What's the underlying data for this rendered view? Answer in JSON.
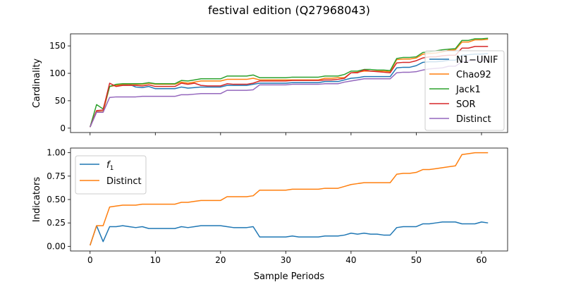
{
  "figure": {
    "title": "festival edition (Q27968043)"
  },
  "colors": {
    "blue": "#1f77b4",
    "orange": "#ff7f0e",
    "green": "#2ca02c",
    "red": "#d62728",
    "purple": "#9467bd"
  },
  "chart_data": [
    {
      "type": "line",
      "title": "",
      "xlabel": "",
      "ylabel": "Cardinality",
      "xlim": [
        -3,
        64
      ],
      "ylim": [
        -8,
        172
      ],
      "xticks": [
        0,
        10,
        20,
        30,
        40,
        50,
        60
      ],
      "xtick_labels_visible": false,
      "yticks": [
        0,
        50,
        100,
        150
      ],
      "legend": "right",
      "grid": false,
      "series": [
        {
          "name": "N1−UNIF",
          "color": "#1f77b4",
          "values": [
            2,
            30,
            30,
            76,
            78,
            79,
            80,
            75,
            74,
            76,
            72,
            72,
            72,
            72,
            75,
            73,
            74,
            75,
            75,
            75,
            75,
            78,
            78,
            78,
            78,
            80,
            82,
            82,
            82,
            82,
            82,
            83,
            83,
            83,
            83,
            83,
            85,
            85,
            85,
            88,
            91,
            92,
            94,
            94,
            94,
            94,
            94,
            110,
            111,
            111,
            114,
            120,
            121,
            121,
            122,
            124,
            124,
            133,
            134,
            135,
            135,
            136
          ]
        },
        {
          "name": "Chao92",
          "color": "#ff7f0e",
          "values": [
            2,
            30,
            30,
            76,
            78,
            80,
            80,
            80,
            80,
            82,
            80,
            80,
            80,
            80,
            84,
            82,
            84,
            86,
            86,
            86,
            86,
            89,
            89,
            89,
            89,
            91,
            88,
            88,
            88,
            88,
            88,
            88,
            88,
            88,
            88,
            88,
            91,
            91,
            92,
            92,
            101,
            102,
            104,
            104,
            104,
            104,
            103,
            125,
            126,
            126,
            128,
            135,
            136,
            137,
            139,
            142,
            143,
            157,
            157,
            161,
            161,
            162
          ]
        },
        {
          "name": "Jack1",
          "color": "#2ca02c",
          "values": [
            2,
            43,
            35,
            76,
            80,
            81,
            81,
            81,
            81,
            83,
            81,
            81,
            81,
            81,
            87,
            86,
            88,
            90,
            90,
            90,
            90,
            95,
            95,
            95,
            95,
            97,
            92,
            92,
            92,
            92,
            92,
            93,
            93,
            93,
            93,
            93,
            95,
            95,
            95,
            98,
            104,
            104,
            107,
            107,
            106,
            106,
            105,
            127,
            129,
            129,
            130,
            138,
            139,
            141,
            143,
            144,
            145,
            160,
            160,
            163,
            163,
            164
          ]
        },
        {
          "name": "SOR",
          "color": "#d62728",
          "values": [
            2,
            32,
            33,
            82,
            76,
            78,
            78,
            78,
            77,
            79,
            76,
            76,
            76,
            76,
            82,
            80,
            82,
            78,
            77,
            77,
            77,
            81,
            80,
            80,
            80,
            82,
            86,
            86,
            86,
            86,
            86,
            87,
            87,
            87,
            87,
            87,
            88,
            88,
            89,
            91,
            101,
            101,
            106,
            104,
            103,
            102,
            101,
            119,
            120,
            120,
            123,
            128,
            130,
            130,
            132,
            133,
            133,
            146,
            146,
            149,
            149,
            149
          ]
        },
        {
          "name": "Distinct",
          "color": "#9467bd",
          "values": [
            2,
            29,
            29,
            56,
            57,
            57,
            57,
            57,
            58,
            58,
            58,
            58,
            58,
            58,
            61,
            61,
            62,
            63,
            63,
            63,
            63,
            69,
            69,
            69,
            69,
            70,
            79,
            79,
            79,
            79,
            79,
            80,
            80,
            80,
            80,
            80,
            81,
            81,
            81,
            84,
            86,
            88,
            90,
            90,
            90,
            90,
            90,
            101,
            102,
            102,
            103,
            106,
            108,
            109,
            110,
            113,
            113,
            121,
            123,
            124,
            124,
            124
          ]
        }
      ]
    },
    {
      "type": "line",
      "title": "",
      "xlabel": "Sample Periods",
      "ylabel": "Indicators",
      "xlim": [
        -3,
        64
      ],
      "ylim": [
        -0.05,
        1.05
      ],
      "xticks": [
        0,
        10,
        20,
        30,
        40,
        50,
        60
      ],
      "yticks": [
        0.0,
        0.25,
        0.5,
        0.75,
        1.0
      ],
      "ytick_labels": [
        "0.00",
        "0.25",
        "0.50",
        "0.75",
        "1.00"
      ],
      "legend": "upper left",
      "grid": false,
      "series": [
        {
          "name": "f1",
          "color": "#1f77b4",
          "values": [
            0.01,
            0.22,
            0.05,
            0.21,
            0.21,
            0.22,
            0.21,
            0.2,
            0.21,
            0.19,
            0.19,
            0.19,
            0.19,
            0.19,
            0.21,
            0.2,
            0.21,
            0.22,
            0.22,
            0.22,
            0.22,
            0.21,
            0.2,
            0.2,
            0.2,
            0.21,
            0.1,
            0.1,
            0.1,
            0.1,
            0.1,
            0.11,
            0.1,
            0.1,
            0.1,
            0.1,
            0.11,
            0.11,
            0.11,
            0.12,
            0.14,
            0.13,
            0.14,
            0.13,
            0.13,
            0.12,
            0.12,
            0.2,
            0.21,
            0.21,
            0.21,
            0.24,
            0.24,
            0.25,
            0.26,
            0.26,
            0.26,
            0.24,
            0.24,
            0.24,
            0.26,
            0.25
          ]
        },
        {
          "name": "Distinct",
          "color": "#ff7f0e",
          "values": [
            0.01,
            0.22,
            0.22,
            0.42,
            0.43,
            0.44,
            0.44,
            0.44,
            0.45,
            0.45,
            0.45,
            0.45,
            0.45,
            0.45,
            0.47,
            0.47,
            0.48,
            0.49,
            0.49,
            0.49,
            0.49,
            0.53,
            0.53,
            0.53,
            0.53,
            0.54,
            0.6,
            0.6,
            0.6,
            0.6,
            0.6,
            0.61,
            0.61,
            0.61,
            0.61,
            0.61,
            0.62,
            0.62,
            0.62,
            0.64,
            0.66,
            0.67,
            0.68,
            0.68,
            0.68,
            0.68,
            0.68,
            0.77,
            0.78,
            0.78,
            0.79,
            0.82,
            0.82,
            0.83,
            0.84,
            0.85,
            0.86,
            0.98,
            0.99,
            1.0,
            1.0,
            1.0
          ]
        }
      ]
    }
  ]
}
